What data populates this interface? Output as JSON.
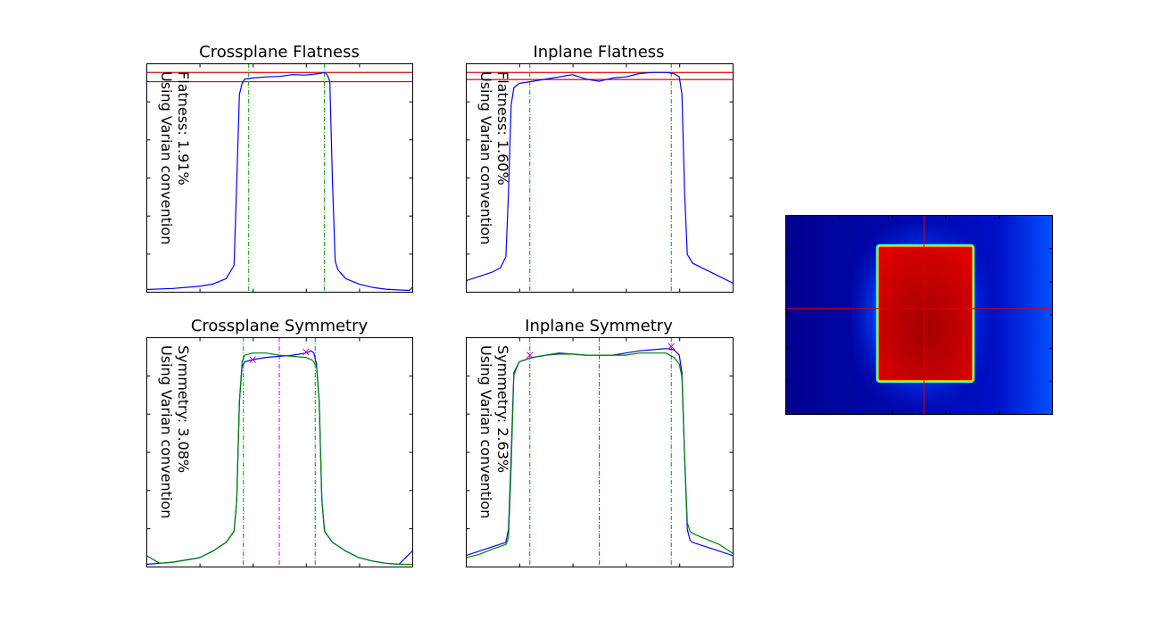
{
  "chart_data": [
    {
      "type": "line",
      "title": "Crossplane Flatness",
      "annotation": [
        "Flatness: 1.91%",
        "Using Varian convention"
      ],
      "xlim": [
        0,
        100
      ],
      "ylim": [
        0,
        100
      ],
      "x": [
        0,
        10,
        20,
        25,
        30,
        33,
        34,
        35,
        36,
        37,
        40,
        45,
        50,
        55,
        60,
        65,
        67,
        68,
        69,
        70,
        71,
        72,
        75,
        80,
        85,
        90,
        95,
        99,
        100
      ],
      "series": [
        {
          "color": "#0000ff",
          "values": [
            1,
            1.5,
            2.5,
            3.5,
            6,
            12,
            50,
            90,
            95,
            97,
            97.5,
            98,
            98.2,
            99,
            98.8,
            99.5,
            100,
            99,
            96,
            50,
            14,
            10,
            6,
            3.5,
            2,
            1.2,
            0.8,
            0.6,
            2
          ]
        }
      ],
      "hlines": [
        {
          "y": 100,
          "color": "#dd0000"
        },
        {
          "y": 95.8,
          "color": "#dd0000"
        }
      ],
      "vlines": [
        {
          "x": 38.5,
          "color": "#009900"
        },
        {
          "x": 67,
          "color": "#009900"
        }
      ]
    },
    {
      "type": "line",
      "title": "Inplane Flatness",
      "annotation": [
        "Flatness: 1.60%",
        "Using Varian convention"
      ],
      "xlim": [
        0,
        100
      ],
      "ylim": [
        0,
        100
      ],
      "x": [
        0,
        5,
        10,
        13,
        15,
        16,
        17,
        18,
        20,
        25,
        30,
        35,
        40,
        45,
        50,
        55,
        60,
        65,
        70,
        75,
        78,
        80,
        81,
        82,
        83,
        85,
        90,
        95,
        100
      ],
      "series": [
        {
          "color": "#0000ff",
          "values": [
            5,
            7,
            9,
            11,
            16,
            45,
            85,
            93,
            95,
            96,
            97,
            98,
            99,
            97,
            96,
            97.5,
            98,
            99.5,
            100,
            100,
            99.5,
            98,
            90,
            45,
            17,
            13,
            10,
            7,
            4
          ]
        }
      ],
      "hlines": [
        {
          "y": 100,
          "color": "#dd0000"
        },
        {
          "y": 96.8,
          "color": "#dd0000"
        }
      ],
      "vlines": [
        {
          "x": 24,
          "color": "#009900"
        },
        {
          "x": 77,
          "color": "#009900"
        }
      ]
    },
    {
      "type": "line",
      "title": "Crossplane Symmetry",
      "annotation": [
        "Symmetry: 3.08%",
        "Using Varian convention"
      ],
      "xlim": [
        0,
        100
      ],
      "ylim": [
        0,
        100
      ],
      "x": [
        0,
        5,
        10,
        20,
        25,
        30,
        33,
        34,
        35,
        36,
        37,
        40,
        45,
        50,
        55,
        60,
        62,
        63,
        64,
        65,
        66,
        67,
        70,
        75,
        80,
        85,
        90,
        95,
        100
      ],
      "series": [
        {
          "color": "#0000ff",
          "values": [
            1,
            1.5,
            2,
            4,
            7,
            11,
            16,
            30,
            75,
            91,
            93,
            94,
            95,
            95.5,
            96,
            97,
            98,
            97,
            92,
            75,
            30,
            16,
            11,
            7,
            4,
            2.5,
            1.5,
            1,
            7
          ]
        },
        {
          "color": "#008000",
          "values": [
            5,
            1.5,
            2,
            4,
            7,
            11,
            16,
            30,
            75,
            93,
            96,
            97,
            97,
            96,
            95.5,
            95,
            94,
            93,
            91,
            75,
            30,
            16,
            11,
            7,
            4,
            2.5,
            1.5,
            1,
            1
          ]
        }
      ],
      "hlines": [],
      "vlines": [
        {
          "x": 36.5,
          "color": "#009900"
        },
        {
          "x": 50,
          "color": "#cc00cc"
        },
        {
          "x": 63.5,
          "color": "#009900"
        }
      ],
      "markers": [
        {
          "x": 40,
          "y": 94,
          "color": "#cc00cc"
        },
        {
          "x": 60,
          "y": 97.5,
          "color": "#cc00cc"
        }
      ]
    },
    {
      "type": "line",
      "title": "Inplane Symmetry",
      "annotation": [
        "Symmetry: 2.63%",
        "Using Varian convention"
      ],
      "xlim": [
        0,
        100
      ],
      "ylim": [
        0,
        100
      ],
      "x": [
        0,
        5,
        10,
        15,
        16,
        17,
        18,
        20,
        25,
        30,
        35,
        40,
        45,
        50,
        55,
        60,
        65,
        70,
        75,
        78,
        80,
        81,
        82,
        83,
        84,
        85,
        90,
        95,
        100
      ],
      "series": [
        {
          "color": "#0000ff",
          "values": [
            5,
            7,
            9,
            11,
            17,
            50,
            88,
            93,
            95,
            96,
            97,
            96.5,
            96,
            96,
            96,
            97,
            98,
            98.5,
            99,
            98.5,
            96,
            88,
            50,
            17,
            12,
            11,
            9,
            7,
            5
          ]
        },
        {
          "color": "#008000",
          "values": [
            4,
            5.5,
            8,
            10,
            13,
            45,
            87,
            93,
            95,
            96,
            96.5,
            96.5,
            96,
            96,
            96,
            96,
            97,
            97,
            97,
            95,
            92,
            86,
            50,
            20,
            16,
            15,
            12.5,
            10,
            6
          ]
        }
      ],
      "hlines": [],
      "vlines": [
        {
          "x": 24,
          "color": "#009900"
        },
        {
          "x": 50,
          "color": "#cc00cc"
        },
        {
          "x": 77,
          "color": "#009900"
        }
      ],
      "markers": [
        {
          "x": 24,
          "y": 96,
          "color": "#cc00cc"
        },
        {
          "x": 77,
          "y": 100,
          "color": "#cc00cc"
        }
      ]
    },
    {
      "type": "heatmap",
      "colormap": "jet",
      "field": {
        "x_from": 35,
        "x_to": 70,
        "y_from": 16,
        "y_to": 83
      },
      "crosshair": {
        "x": 52,
        "y": 47,
        "color": "#dd0000"
      }
    }
  ]
}
